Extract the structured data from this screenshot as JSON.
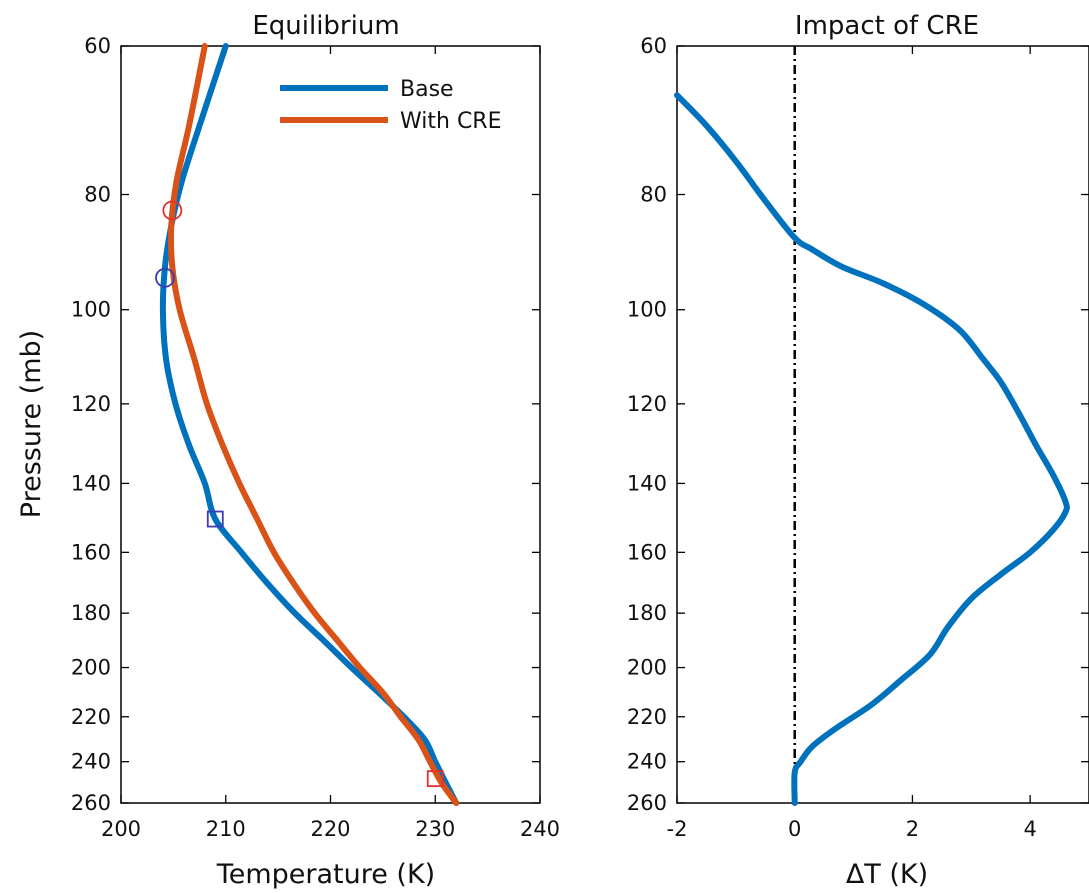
{
  "chart_data": [
    {
      "type": "line",
      "title": "Equilibrium",
      "xlabel": "Temperature (K)",
      "ylabel": "Pressure (mb)",
      "xlim": [
        200,
        240
      ],
      "ylim": [
        60,
        260
      ],
      "y_reversed": true,
      "y_scale": "log",
      "xticks": [
        "200",
        "210",
        "220",
        "230",
        "240"
      ],
      "yticks": [
        "60",
        "80",
        "100",
        "120",
        "140",
        "160",
        "180",
        "200",
        "220",
        "240",
        "260"
      ],
      "legend_position": "top-right",
      "series": [
        {
          "name": "Base",
          "color": "#0072bd",
          "points": [
            [
              210,
              60
            ],
            [
              207.5,
              70
            ],
            [
              205.8,
              78
            ],
            [
              204.8,
              85
            ],
            [
              204.2,
              92
            ],
            [
              204.0,
              100
            ],
            [
              204.3,
              110
            ],
            [
              205.2,
              120
            ],
            [
              206.5,
              130
            ],
            [
              208.0,
              140
            ],
            [
              209.0,
              150
            ],
            [
              211.5,
              160
            ],
            [
              214.0,
              170
            ],
            [
              216.6,
              180
            ],
            [
              219.4,
              190
            ],
            [
              222.0,
              200
            ],
            [
              224.6,
              210
            ],
            [
              227.0,
              220
            ],
            [
              229.0,
              230
            ],
            [
              230.0,
              240
            ],
            [
              231.0,
              250
            ],
            [
              232.0,
              260
            ]
          ]
        },
        {
          "name": "With CRE",
          "color": "#d95319",
          "points": [
            [
              208,
              60
            ],
            [
              206.5,
              70
            ],
            [
              205.3,
              78
            ],
            [
              204.8,
              85
            ],
            [
              204.9,
              92
            ],
            [
              205.6,
              100
            ],
            [
              207.0,
              110
            ],
            [
              208.2,
              120
            ],
            [
              209.7,
              130
            ],
            [
              211.3,
              140
            ],
            [
              213.0,
              150
            ],
            [
              214.6,
              160
            ],
            [
              216.5,
              170
            ],
            [
              218.5,
              180
            ],
            [
              220.7,
              190
            ],
            [
              222.8,
              200
            ],
            [
              225.0,
              210
            ],
            [
              226.7,
              220
            ],
            [
              228.4,
              230
            ],
            [
              229.5,
              240
            ],
            [
              230.6,
              250
            ],
            [
              232.0,
              260
            ]
          ]
        }
      ],
      "markers": [
        {
          "shape": "circle",
          "color": "#e53030",
          "x": 204.9,
          "y": 82.5
        },
        {
          "shape": "circle",
          "color": "#3b3bb3",
          "x": 204.2,
          "y": 94
        },
        {
          "shape": "square",
          "color": "#3b3bb3",
          "x": 209.0,
          "y": 150
        },
        {
          "shape": "square",
          "color": "#e53030",
          "x": 230.0,
          "y": 248
        }
      ]
    },
    {
      "type": "line",
      "title": "Impact of CRE",
      "xlabel": "ΔT (K)",
      "xlim": [
        -2,
        5
      ],
      "ylim": [
        60,
        260
      ],
      "y_reversed": true,
      "y_scale": "log",
      "xticks": [
        "-2",
        "0",
        "2",
        "4"
      ],
      "yticks": [
        "60",
        "80",
        "100",
        "120",
        "140",
        "160",
        "180",
        "200",
        "220",
        "240",
        "260"
      ],
      "reference_line": {
        "x": 0,
        "style": "dash-dot",
        "color": "#000000"
      },
      "series": [
        {
          "color": "#0072bd",
          "points": [
            [
              -2.0,
              66
            ],
            [
              -1.5,
              70
            ],
            [
              -1.0,
              75
            ],
            [
              -0.5,
              81
            ],
            [
              0.0,
              87
            ],
            [
              0.3,
              89
            ],
            [
              0.8,
              92
            ],
            [
              1.5,
              95
            ],
            [
              2.2,
              99
            ],
            [
              2.8,
              104
            ],
            [
              3.2,
              110
            ],
            [
              3.5,
              115
            ],
            [
              3.8,
              122
            ],
            [
              4.1,
              130
            ],
            [
              4.4,
              138
            ],
            [
              4.6,
              145
            ],
            [
              4.6,
              148
            ],
            [
              4.4,
              153
            ],
            [
              4.0,
              160
            ],
            [
              3.5,
              167
            ],
            [
              3.0,
              175
            ],
            [
              2.6,
              185
            ],
            [
              2.3,
              195
            ],
            [
              1.8,
              205
            ],
            [
              1.3,
              215
            ],
            [
              0.7,
              225
            ],
            [
              0.3,
              233
            ],
            [
              0.1,
              240
            ],
            [
              0.0,
              245
            ],
            [
              0.0,
              260
            ]
          ]
        }
      ]
    }
  ]
}
